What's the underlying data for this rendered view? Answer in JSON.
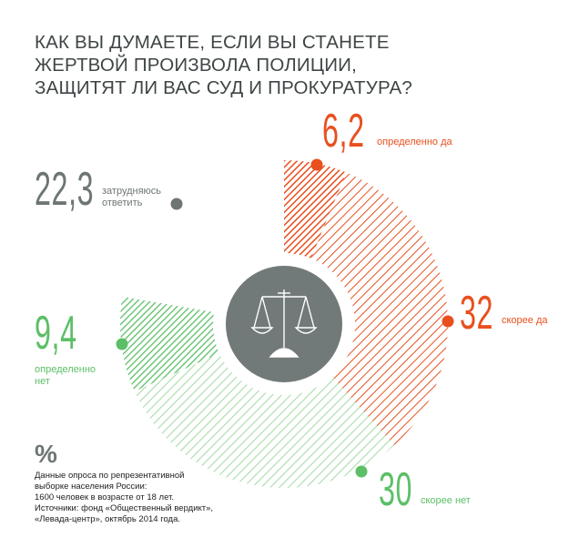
{
  "title_lines": [
    "КАК ВЫ ДУМАЕТЕ, ЕСЛИ ВЫ СТАНЕТЕ",
    "ЖЕРТВОЙ ПРОИЗВОЛА ПОЛИЦИИ,",
    "ЗАЩИТЯТ ЛИ ВАС СУД И ПРОКУРАТУРА?"
  ],
  "labels": {
    "definitely_yes": {
      "value": "6,2",
      "text": "определенно да"
    },
    "rather_yes": {
      "value": "32",
      "text": "скорее да"
    },
    "rather_no": {
      "value": "30",
      "text": "скорее нет"
    },
    "definitely_no": {
      "value": "9,4",
      "text_line1": "определенно",
      "text_line2": "нет"
    },
    "hard_to_say": {
      "value": "22,3",
      "text_line1": "затрудняюсь",
      "text_line2": "ответить"
    }
  },
  "center_icon": "scales-of-justice-icon",
  "note": {
    "symbol": "%",
    "lines": [
      "Данные опроса по репрезентативной",
      "выборке населения России:",
      "1600 человек в возрасте от 18 лет.",
      "Источники: фонд «Общественный вердикт»,",
      "«Левада-центр», октябрь 2014 года."
    ]
  },
  "colors": {
    "red": "#e8501f",
    "green": "#5cbf67",
    "light_green": "#a8dca9",
    "grey": "#6e7674",
    "center": "#717a78"
  },
  "chart_data": {
    "type": "pie",
    "categories": [
      "определенно да",
      "скорее да",
      "скорее нет",
      "определенно нет",
      "затрудняюсь ответить"
    ],
    "values": [
      6.2,
      32,
      30,
      9.4,
      22.3
    ]
  }
}
